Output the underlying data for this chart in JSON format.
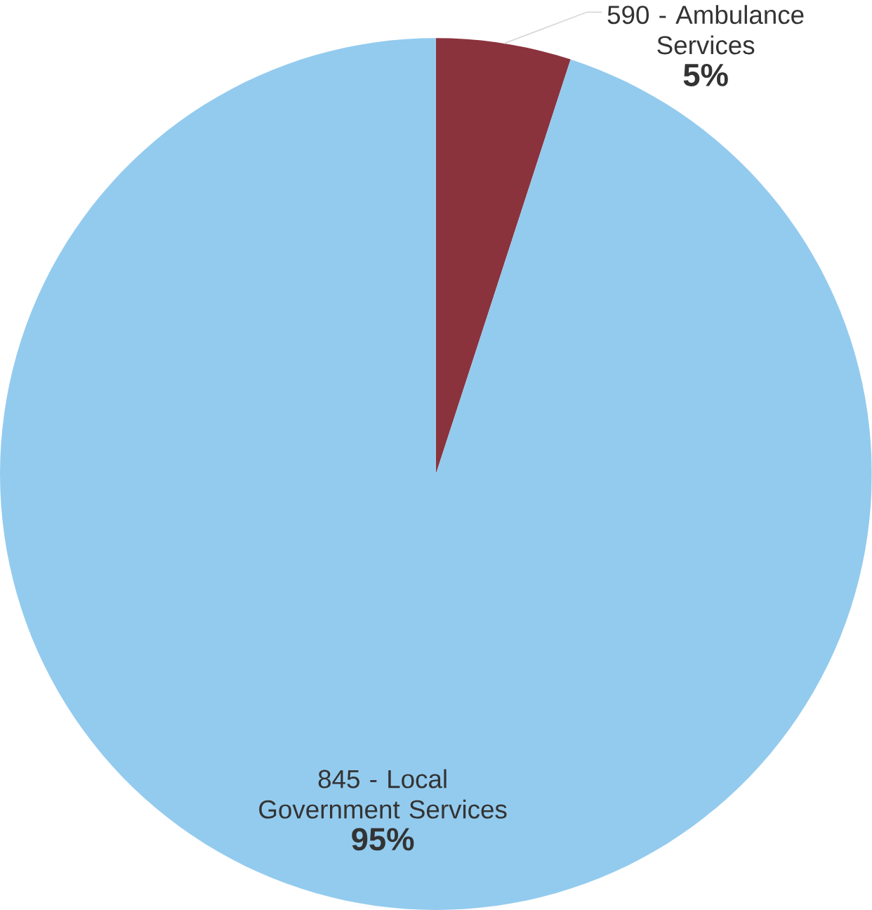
{
  "chart_data": {
    "type": "pie",
    "categories": [
      "590 - Ambulance Services",
      "845 - Local Government Services"
    ],
    "values": [
      5,
      95
    ],
    "colors": [
      "#8b333d",
      "#93cbee"
    ],
    "value_labels": [
      "5%",
      "95%"
    ]
  }
}
